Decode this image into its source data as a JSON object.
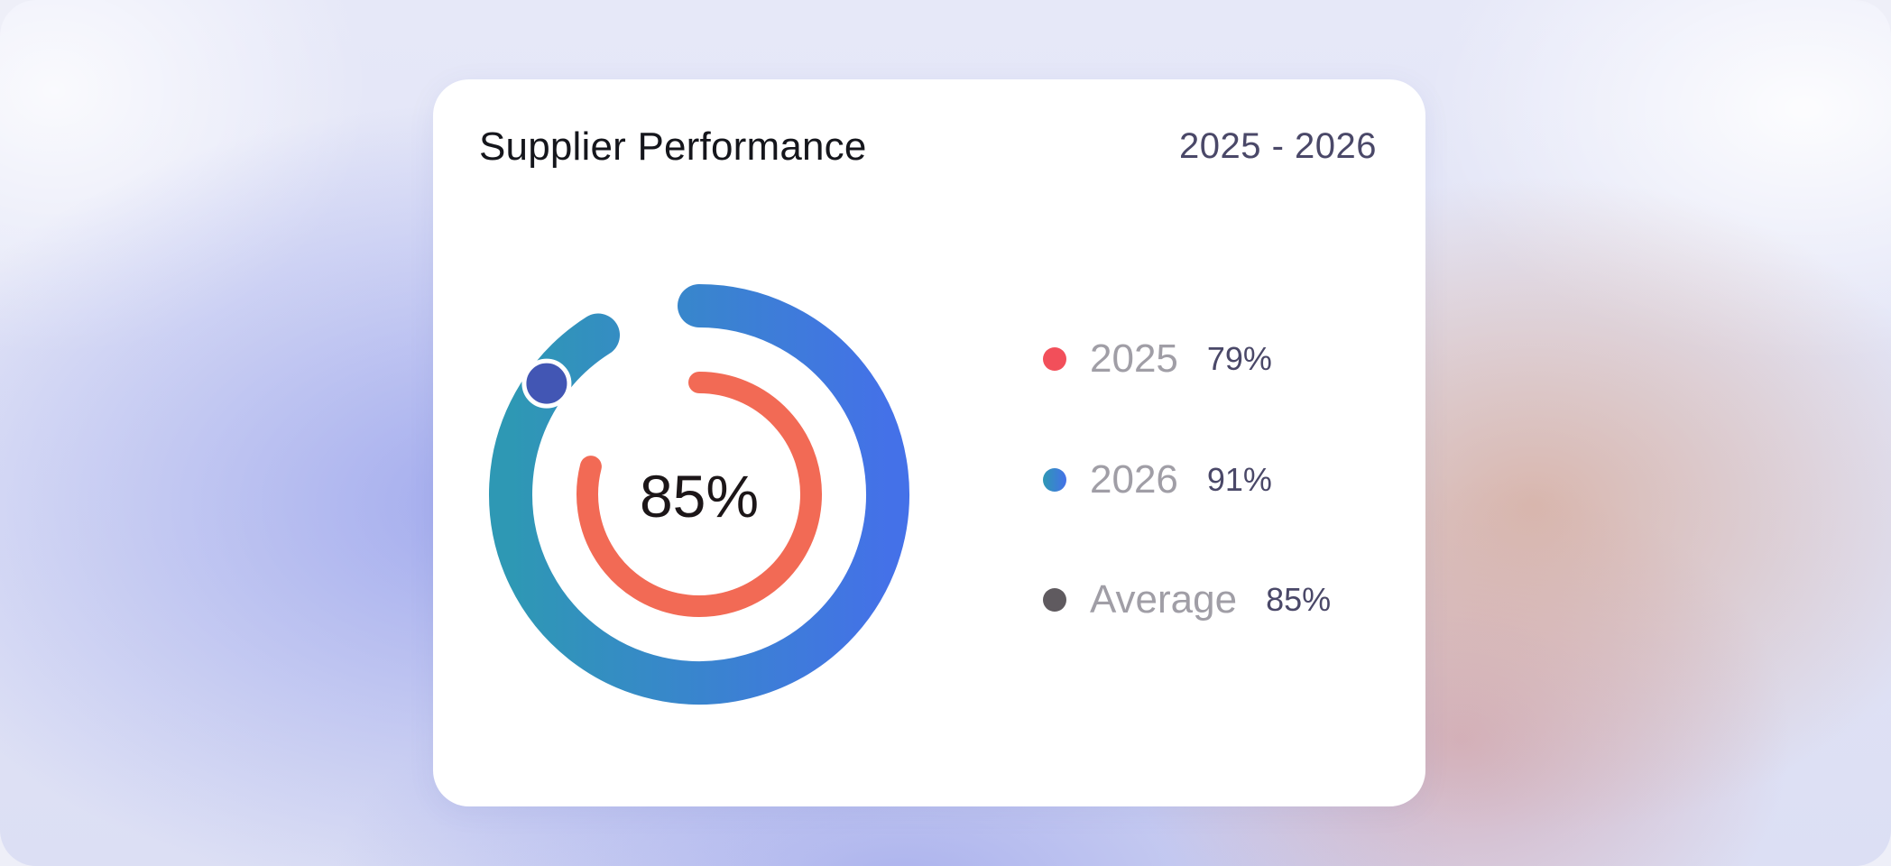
{
  "card": {
    "title": "Supplier Performance",
    "year_range": "2025 - 2026"
  },
  "chart_data": {
    "type": "radial-progress",
    "title": "Supplier Performance",
    "center_value": "85%",
    "series": [
      {
        "name": "2025",
        "value": 79,
        "value_label": "79%",
        "color": "#f26a55"
      },
      {
        "name": "2026",
        "value": 91,
        "value_label": "91%",
        "color_start": "#2e98b4",
        "color_end": "#4471e8"
      },
      {
        "name": "Average",
        "value": 85,
        "value_label": "85%",
        "color": "#5f5a5f"
      }
    ]
  },
  "legend": [
    {
      "label": "2025",
      "value": "79%",
      "color": "#f24f5a"
    },
    {
      "label": "2026",
      "value": "91%",
      "color": "#4471e8"
    },
    {
      "label": "Average",
      "value": "85%",
      "color": "#5f5a5f"
    }
  ],
  "colors": {
    "outer_ring_start": "#2e98b4",
    "outer_ring_end": "#4471e8",
    "inner_ring": "#f26a55",
    "marker": "#4256b4"
  }
}
